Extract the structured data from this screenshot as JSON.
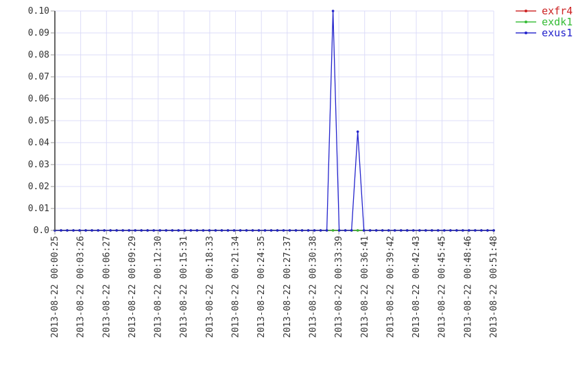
{
  "chart_data": {
    "type": "line",
    "title": "",
    "xlabel": "",
    "ylabel": "",
    "ylim": [
      0,
      0.1
    ],
    "yticks": [
      "0.0",
      "0.01",
      "0.02",
      "0.03",
      "0.04",
      "0.05",
      "0.06",
      "0.07",
      "0.08",
      "0.09",
      "0.10"
    ],
    "xticks": [
      "2013-08-22 00:00:25",
      "2013-08-22 00:03:26",
      "2013-08-22 00:06:27",
      "2013-08-22 00:09:29",
      "2013-08-22 00:12:30",
      "2013-08-22 00:15:31",
      "2013-08-22 00:18:33",
      "2013-08-22 00:21:34",
      "2013-08-22 00:24:35",
      "2013-08-22 00:27:37",
      "2013-08-22 00:30:38",
      "2013-08-22 00:33:39",
      "2013-08-22 00:36:41",
      "2013-08-22 00:39:42",
      "2013-08-22 00:42:43",
      "2013-08-22 00:45:45",
      "2013-08-22 00:48:46",
      "2013-08-22 00:51:48"
    ],
    "grid": true,
    "legend_position": "top-right",
    "x": [
      "00:00:25",
      "00:01:08",
      "00:01:52",
      "00:02:35",
      "00:03:19",
      "00:04:02",
      "00:04:46",
      "00:05:29",
      "00:06:12",
      "00:06:56",
      "00:07:39",
      "00:08:23",
      "00:09:06",
      "00:09:49",
      "00:10:33",
      "00:11:16",
      "00:12:00",
      "00:12:43",
      "00:13:27",
      "00:14:10",
      "00:14:53",
      "00:15:37",
      "00:16:20",
      "00:17:04",
      "00:17:47",
      "00:18:31",
      "00:19:14",
      "00:19:57",
      "00:20:41",
      "00:21:24",
      "00:22:08",
      "00:22:51",
      "00:23:34",
      "00:24:18",
      "00:25:01",
      "00:25:45",
      "00:26:28",
      "00:27:12",
      "00:27:55",
      "00:28:38",
      "00:29:22",
      "00:30:05",
      "00:30:49",
      "00:31:32",
      "00:32:16",
      "00:32:59",
      "00:33:42",
      "00:34:26",
      "00:35:09",
      "00:35:53",
      "00:36:36",
      "00:37:19",
      "00:38:03",
      "00:38:46",
      "00:39:30",
      "00:40:13",
      "00:40:57",
      "00:41:40",
      "00:42:23",
      "00:43:07",
      "00:43:50",
      "00:44:34",
      "00:45:17",
      "00:46:00",
      "00:46:44",
      "00:47:27",
      "00:48:11",
      "00:48:54",
      "00:49:38",
      "00:50:21",
      "00:51:04",
      "00:51:48"
    ],
    "series": [
      {
        "name": "exfr4",
        "color": "#cc2222",
        "values": [
          0,
          0,
          0,
          0,
          0,
          0,
          0,
          0,
          0,
          0,
          0,
          0,
          0,
          0,
          0,
          0,
          0,
          0,
          0,
          0,
          0,
          0,
          0,
          0,
          0,
          0,
          0,
          0,
          0,
          0,
          0,
          0,
          0,
          0,
          0,
          0,
          0,
          0,
          0,
          0,
          0,
          0,
          0,
          0,
          0,
          0,
          0,
          0,
          0,
          0,
          0,
          0,
          0,
          0,
          0,
          0,
          0,
          0,
          0,
          0,
          0,
          0,
          0,
          0,
          0,
          0,
          0,
          0,
          0,
          0,
          0,
          0
        ]
      },
      {
        "name": "exdk1",
        "color": "#33bb33",
        "values": [
          0,
          0,
          0,
          0,
          0,
          0,
          0,
          0,
          0,
          0,
          0,
          0,
          0,
          0,
          0,
          0,
          0,
          0,
          0,
          0,
          0,
          0,
          0,
          0,
          0,
          0,
          0,
          0,
          0,
          0,
          0,
          0,
          0,
          0,
          0,
          0,
          0,
          0,
          0,
          0,
          0,
          0,
          0,
          0,
          0,
          0,
          0,
          0,
          0,
          0,
          0,
          0,
          0,
          0,
          0,
          0,
          0,
          0,
          0,
          0,
          0,
          0,
          0,
          0,
          0,
          0,
          0,
          0,
          0,
          0,
          0,
          0
        ]
      },
      {
        "name": "exus1",
        "color": "#2222cc",
        "values": [
          0,
          0,
          0,
          0,
          0,
          0,
          0,
          0,
          0,
          0,
          0,
          0,
          0,
          0,
          0,
          0,
          0,
          0,
          0,
          0,
          0,
          0,
          0,
          0,
          0,
          0,
          0,
          0,
          0,
          0,
          0,
          0,
          0,
          0,
          0,
          0,
          0,
          0,
          0,
          0,
          0,
          0,
          0,
          0,
          0,
          0.1,
          0,
          0,
          0,
          0.045,
          0,
          0,
          0,
          0,
          0,
          0,
          0,
          0,
          0,
          0,
          0,
          0,
          0,
          0,
          0,
          0,
          0,
          0,
          0,
          0,
          0,
          0
        ]
      }
    ]
  }
}
